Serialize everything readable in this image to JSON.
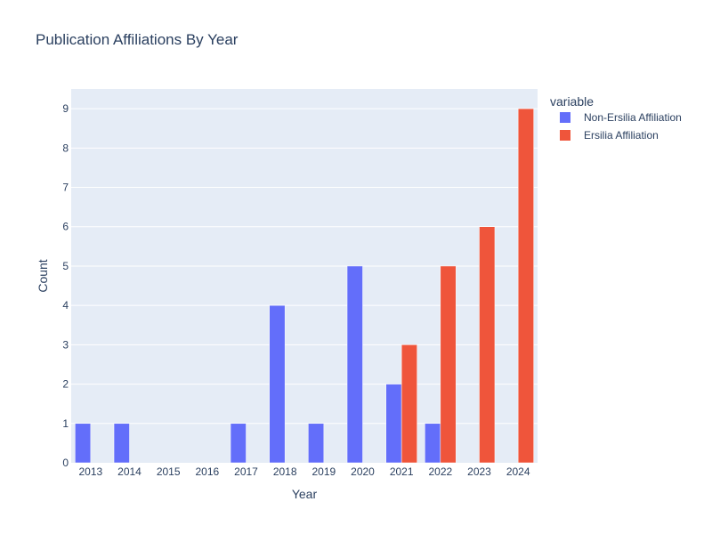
{
  "chart_data": {
    "type": "bar",
    "title": "Publication Affiliations By Year",
    "xlabel": "Year",
    "ylabel": "Count",
    "categories": [
      "2013",
      "2014",
      "2015",
      "2016",
      "2017",
      "2018",
      "2019",
      "2020",
      "2021",
      "2022",
      "2023",
      "2024"
    ],
    "ylim": [
      0,
      9.5
    ],
    "yticks": [
      0,
      1,
      2,
      3,
      4,
      5,
      6,
      7,
      8,
      9
    ],
    "grid": true,
    "barmode": "group",
    "legend": {
      "title": "variable",
      "placement": "top-right, outside plot"
    },
    "series": [
      {
        "name": "Non-Ersilia Affiliation",
        "color": "#636efa",
        "values": [
          1,
          1,
          0,
          0,
          1,
          4,
          1,
          5,
          2,
          1,
          0,
          0
        ]
      },
      {
        "name": "Ersilia Affiliation",
        "color": "#ef553b",
        "values": [
          0,
          0,
          0,
          0,
          0,
          0,
          0,
          0,
          3,
          5,
          6,
          9
        ]
      }
    ],
    "plot_background": "#e5ecf6",
    "gridline_color": "#ffffff"
  }
}
